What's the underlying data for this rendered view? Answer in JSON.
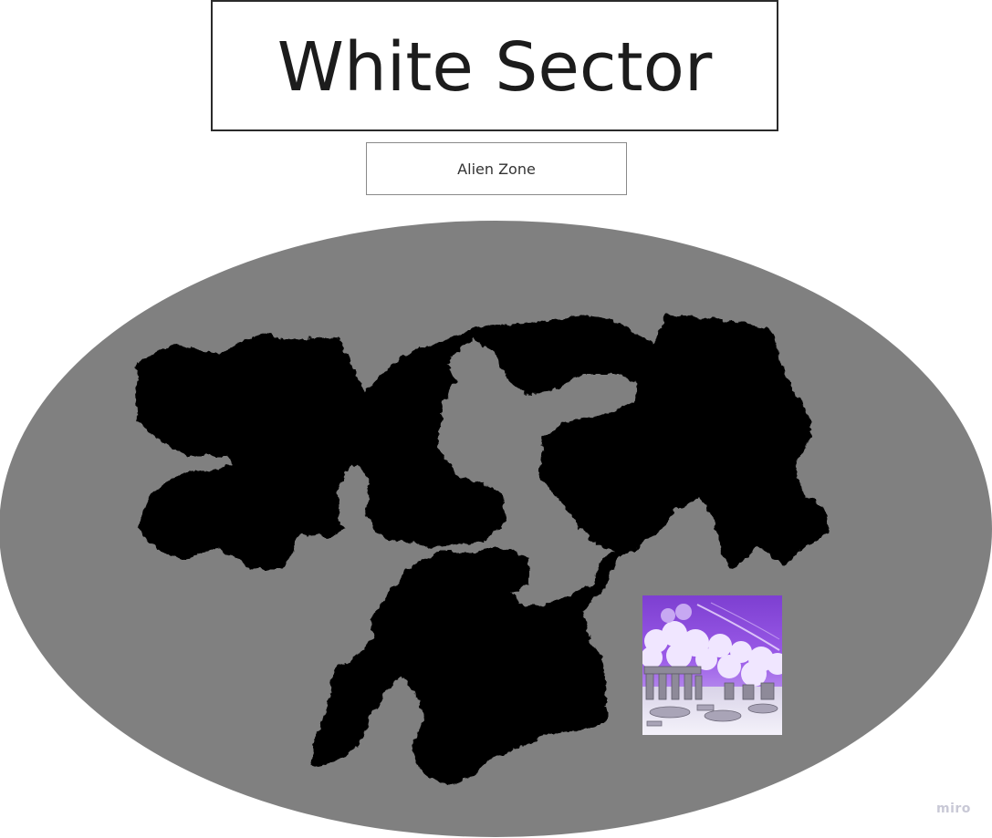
{
  "board": {
    "title": "White Sector",
    "subtitle": "Alien Zone"
  },
  "map": {
    "ocean_color": "#808080",
    "land_color": "#000000",
    "image_icon": "alien-ruins-image"
  },
  "watermark": {
    "text": "miro"
  }
}
